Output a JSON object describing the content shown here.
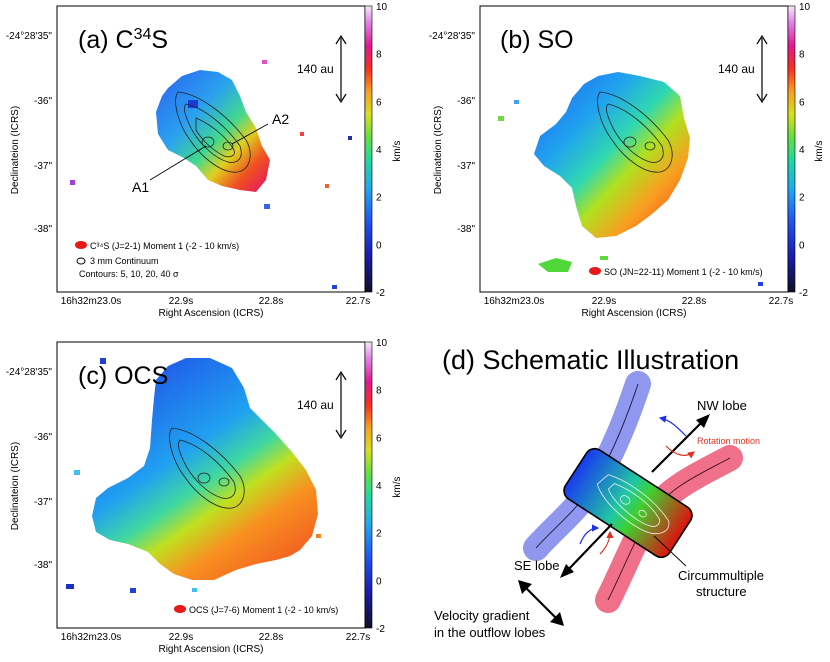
{
  "chart_data": [
    {
      "type": "heatmap",
      "panel_id": "a",
      "title": "(a) C³⁴S",
      "title_prefix": "(a) C",
      "title_sup": "34",
      "title_suffix": "S",
      "xlabel": "Right Ascension (ICRS)",
      "ylabel": "Declinateion (ICRS)",
      "xticks": [
        "16h32m23.0s",
        "22.9s",
        "22.8s",
        "22.7s"
      ],
      "yticks": [
        "-24°28'35\"",
        "-36\"",
        "-37\"",
        "-38\""
      ],
      "colorbar": {
        "label": "km/s",
        "min": -2,
        "max": 10,
        "ticks": [
          -2,
          0,
          2,
          4,
          6,
          8,
          10
        ]
      },
      "scale_bar": "140 au",
      "annotations": [
        "A1",
        "A2"
      ],
      "legend": [
        "C³⁴S (J=2-1) Moment 1 (-2 - 10 km/s)",
        "3 mm Continuum",
        "Contours: 5, 10, 20, 40 σ"
      ]
    },
    {
      "type": "heatmap",
      "panel_id": "b",
      "title": "(b) SO",
      "xlabel": "Right Ascension (ICRS)",
      "ylabel": "Declinateion (ICRS)",
      "xticks": [
        "16h32m23.0s",
        "22.9s",
        "22.8s",
        "22.7s"
      ],
      "yticks": [
        "-24°28'35\"",
        "-36\"",
        "-37\"",
        "-38\""
      ],
      "colorbar": {
        "label": "km/s",
        "min": -2,
        "max": 10,
        "ticks": [
          -2,
          0,
          2,
          4,
          6,
          8,
          10
        ]
      },
      "scale_bar": "140 au",
      "legend": [
        "SO (JN=22-11) Moment 1 (-2 - 10 km/s)"
      ]
    },
    {
      "type": "heatmap",
      "panel_id": "c",
      "title": "(c) OCS",
      "xlabel": "Right Ascension (ICRS)",
      "ylabel": "Declinateion (ICRS)",
      "xticks": [
        "16h32m23.0s",
        "22.9s",
        "22.8s",
        "22.7s"
      ],
      "yticks": [
        "-24°28'35\"",
        "-36\"",
        "-37\"",
        "-38\""
      ],
      "colorbar": {
        "label": "km/s",
        "min": -2,
        "max": 10,
        "ticks": [
          -2,
          0,
          2,
          4,
          6,
          8,
          10
        ]
      },
      "scale_bar": "140 au",
      "legend": [
        "OCS (J=7-6) Moment 1 (-2 - 10 km/s)"
      ]
    }
  ],
  "schematic": {
    "title": "(d) Schematic Illustration",
    "labels": {
      "nw_lobe": "NW lobe",
      "se_lobe": "SE lobe",
      "rotation": "Rotation motion",
      "structure_line1": "Circummultiple",
      "structure_line2": "structure",
      "gradient_line1": "Velocity gradient",
      "gradient_line2": "in the outflow lobes"
    }
  },
  "colors": {
    "blue": "#2a50f0",
    "red": "#e81818",
    "blue_lobe": "#8f98ee",
    "red_lobe": "#f0708a",
    "rotation_red": "#e03020"
  }
}
